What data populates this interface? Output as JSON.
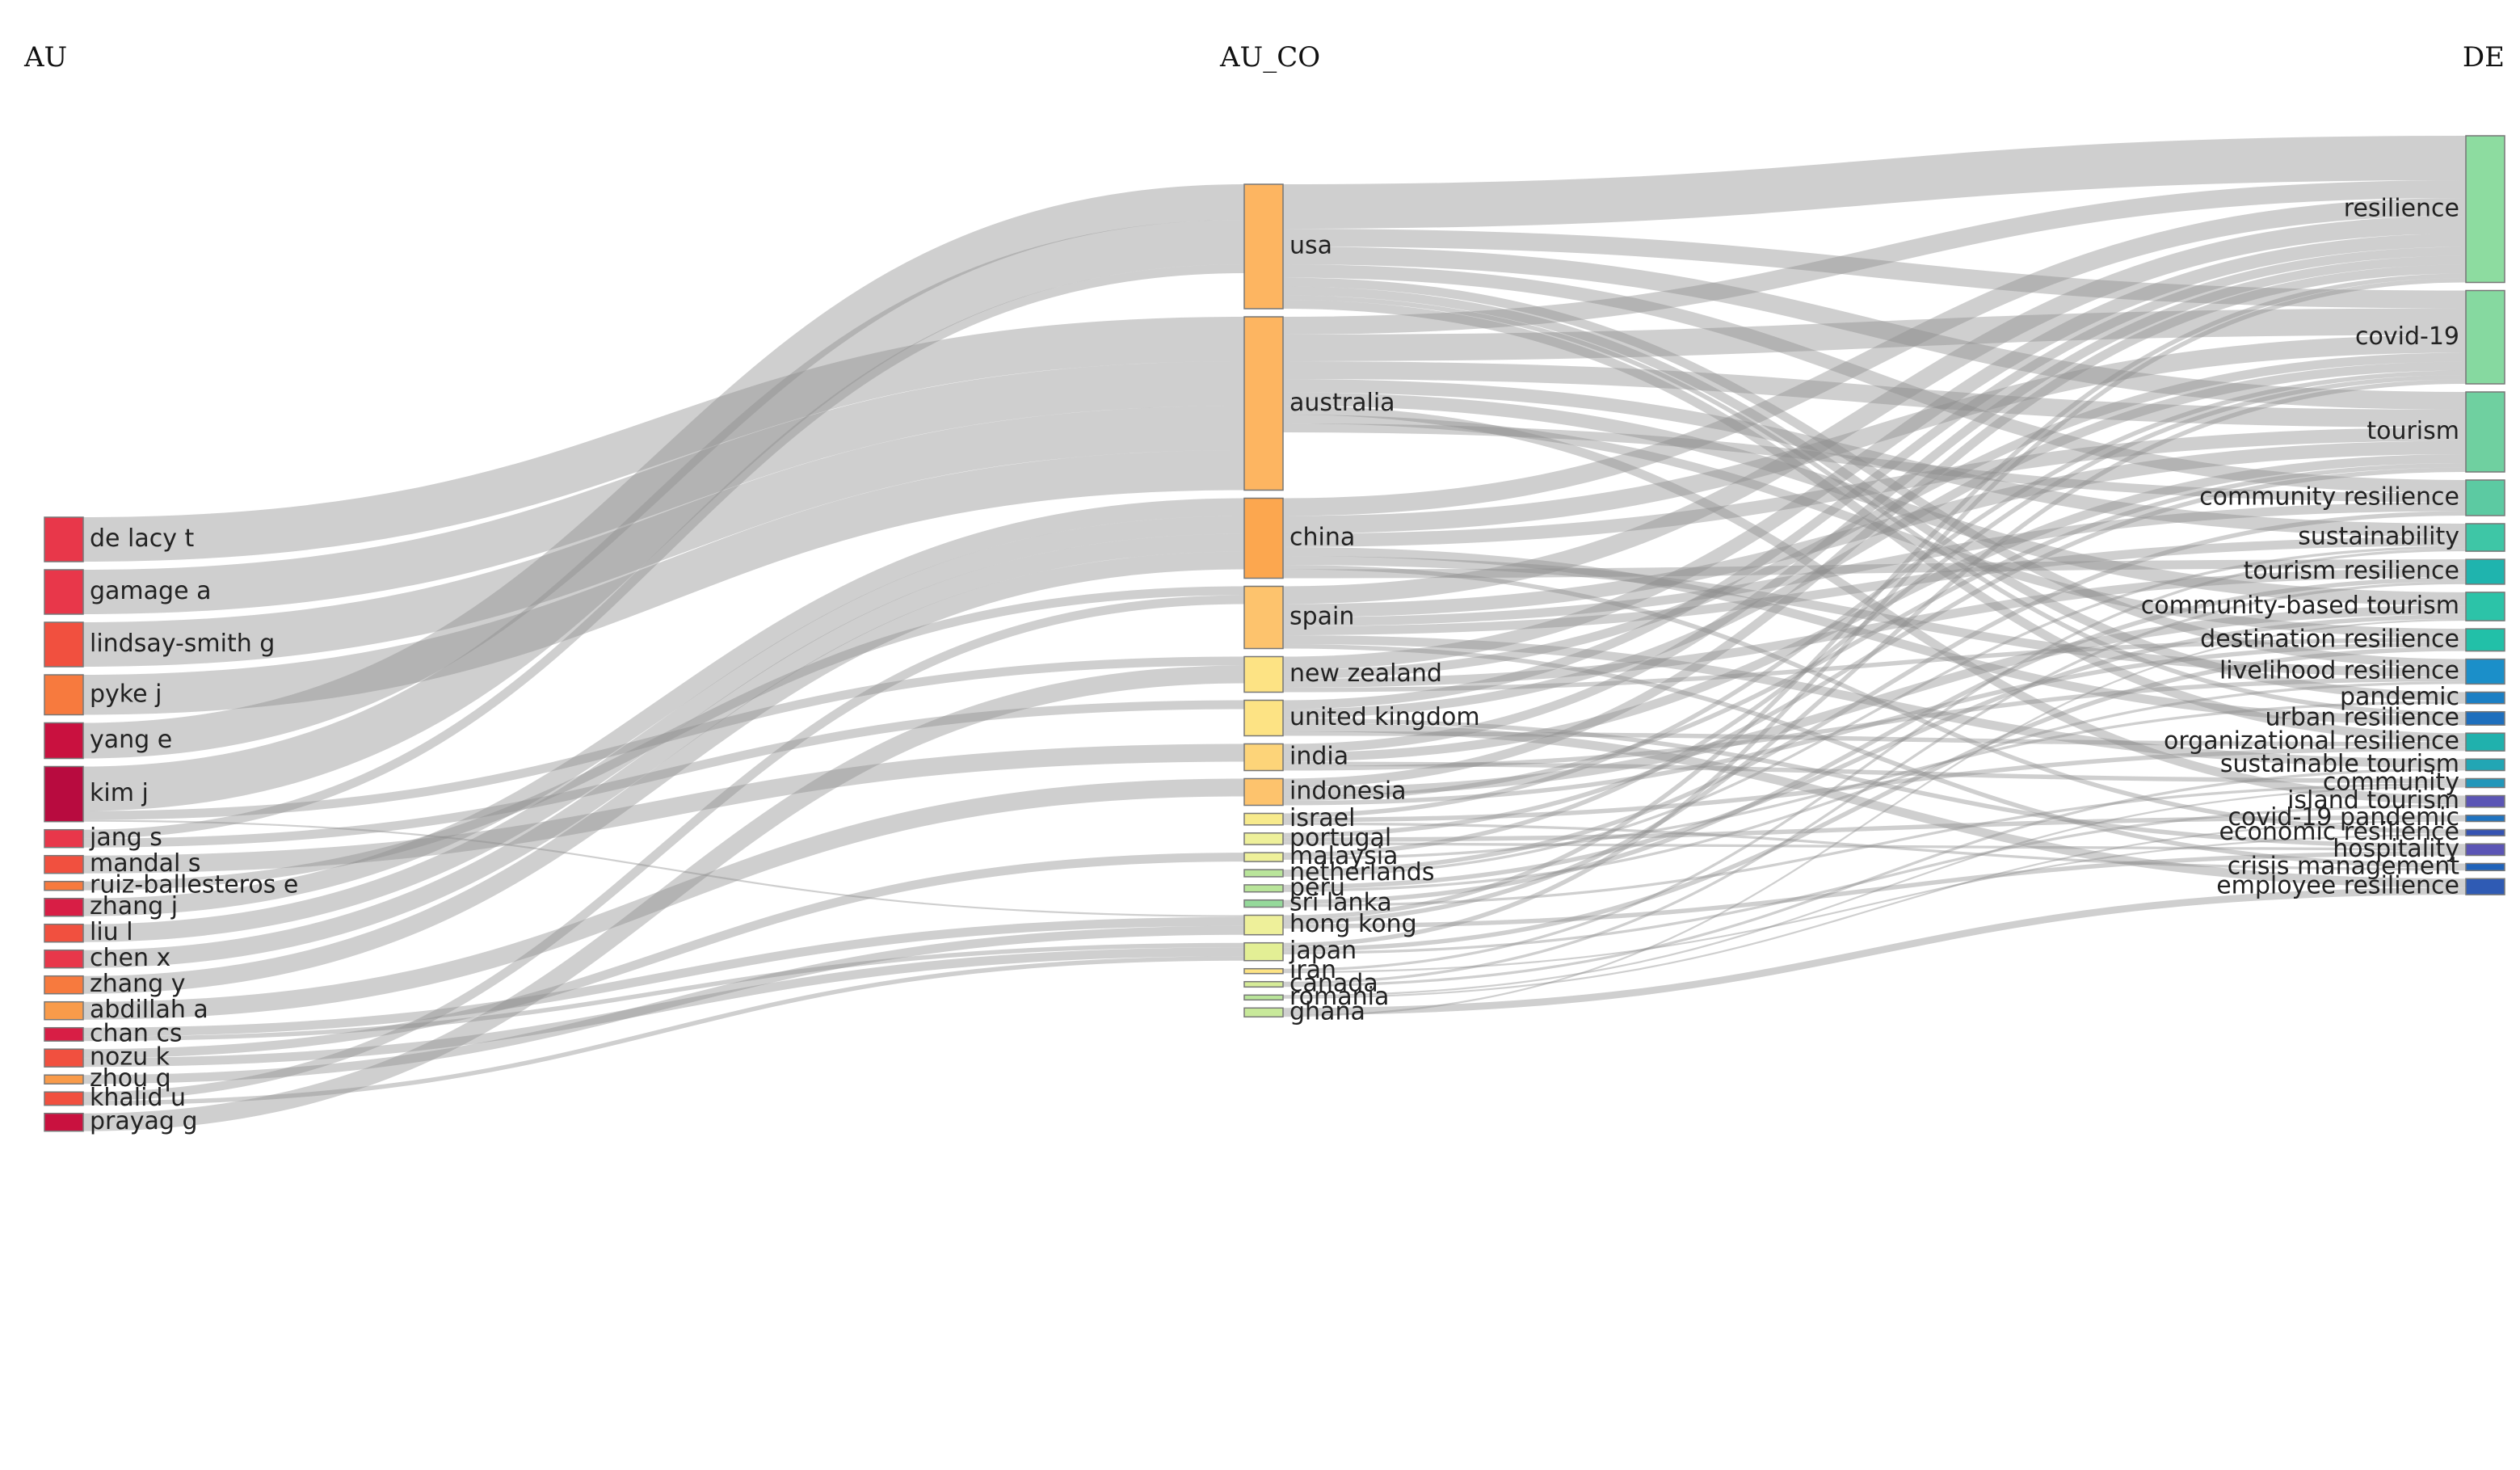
{
  "headers": {
    "left": "AU",
    "middle": "AU_CO",
    "right": "DE"
  },
  "colors": {
    "link": "#8c8c8c",
    "background": "#ffffff"
  },
  "nodes": {
    "au": [
      {
        "id": "a_delacy",
        "label": "de lacy t",
        "color": "#e8374a"
      },
      {
        "id": "a_gamage",
        "label": "gamage a",
        "color": "#e8374a"
      },
      {
        "id": "a_lindsay",
        "label": "lindsay-smith g",
        "color": "#f1503f"
      },
      {
        "id": "a_pyke",
        "label": "pyke j",
        "color": "#f77a3e"
      },
      {
        "id": "a_yang",
        "label": "yang e",
        "color": "#c9113f"
      },
      {
        "id": "a_kim",
        "label": "kim j",
        "color": "#b80b3f"
      },
      {
        "id": "a_jang",
        "label": "jang s",
        "color": "#e8374a"
      },
      {
        "id": "a_mandal",
        "label": "mandal s",
        "color": "#f1503f"
      },
      {
        "id": "a_ruiz",
        "label": "ruiz-ballesteros e",
        "color": "#f77a3e"
      },
      {
        "id": "a_zhangj",
        "label": "zhang j",
        "color": "#d81e45"
      },
      {
        "id": "a_liu",
        "label": "liu l",
        "color": "#f1503f"
      },
      {
        "id": "a_chenx",
        "label": "chen x",
        "color": "#e8374a"
      },
      {
        "id": "a_zhangy",
        "label": "zhang y",
        "color": "#f77a3e"
      },
      {
        "id": "a_abdillah",
        "label": "abdillah a",
        "color": "#f99b4a"
      },
      {
        "id": "a_chancs",
        "label": "chan cs",
        "color": "#d81e45"
      },
      {
        "id": "a_nozu",
        "label": "nozu k",
        "color": "#f1503f"
      },
      {
        "id": "a_zhouq",
        "label": "zhou q",
        "color": "#f99b4a"
      },
      {
        "id": "a_khalid",
        "label": "khalid u",
        "color": "#f1503f"
      },
      {
        "id": "a_prayag",
        "label": "prayag g",
        "color": "#c9113f"
      }
    ],
    "co": [
      {
        "id": "c_usa",
        "label": "usa",
        "color": "#fdb561"
      },
      {
        "id": "c_aus",
        "label": "australia",
        "color": "#fdb561"
      },
      {
        "id": "c_china",
        "label": "china",
        "color": "#fca74f"
      },
      {
        "id": "c_spain",
        "label": "spain",
        "color": "#fdc36d"
      },
      {
        "id": "c_nz",
        "label": "new zealand",
        "color": "#fde384"
      },
      {
        "id": "c_uk",
        "label": "united kingdom",
        "color": "#fde384"
      },
      {
        "id": "c_india",
        "label": "india",
        "color": "#fdd479"
      },
      {
        "id": "c_indonesia",
        "label": "indonesia",
        "color": "#fdc36d"
      },
      {
        "id": "c_israel",
        "label": "israel",
        "color": "#f7ea8c"
      },
      {
        "id": "c_portugal",
        "label": "portugal",
        "color": "#eef09a"
      },
      {
        "id": "c_malaysia",
        "label": "malaysia",
        "color": "#eef09a"
      },
      {
        "id": "c_neth",
        "label": "netherlands",
        "color": "#b9e59a"
      },
      {
        "id": "c_peru",
        "label": "peru",
        "color": "#b9e59a"
      },
      {
        "id": "c_srilanka",
        "label": "sri lanka",
        "color": "#95d99a"
      },
      {
        "id": "c_hk",
        "label": "hong kong",
        "color": "#eef09a"
      },
      {
        "id": "c_japan",
        "label": "japan",
        "color": "#e3ef95"
      },
      {
        "id": "c_iran",
        "label": "iran",
        "color": "#fde384"
      },
      {
        "id": "c_canada",
        "label": "canada",
        "color": "#d6ec98"
      },
      {
        "id": "c_romania",
        "label": "romania",
        "color": "#b9e59a"
      },
      {
        "id": "c_ghana",
        "label": "ghana",
        "color": "#c8e99a"
      }
    ],
    "de": [
      {
        "id": "d_resilience",
        "label": "resilience",
        "color": "#8ddca0"
      },
      {
        "id": "d_covid",
        "label": "covid-19",
        "color": "#86d9a0"
      },
      {
        "id": "d_tourism",
        "label": "tourism",
        "color": "#6fd0a0"
      },
      {
        "id": "d_commres",
        "label": "community resilience",
        "color": "#5ccaa2"
      },
      {
        "id": "d_sust",
        "label": "sustainability",
        "color": "#3ec6a6"
      },
      {
        "id": "d_tourres",
        "label": "tourism resilience",
        "color": "#1fb4ae"
      },
      {
        "id": "d_cbt",
        "label": "community-based tourism",
        "color": "#2cc3a8"
      },
      {
        "id": "d_destres",
        "label": "destination resilience",
        "color": "#22c0a8"
      },
      {
        "id": "d_livelihood",
        "label": "livelihood resilience",
        "color": "#1b8fc9"
      },
      {
        "id": "d_pandemic",
        "label": "pandemic",
        "color": "#1b7fc4"
      },
      {
        "id": "d_urban",
        "label": "urban resilience",
        "color": "#1e6fbd"
      },
      {
        "id": "d_orgres",
        "label": "organizational resilience",
        "color": "#20b1ad"
      },
      {
        "id": "d_susttour",
        "label": "sustainable tourism",
        "color": "#22a6b4"
      },
      {
        "id": "d_community",
        "label": "community",
        "color": "#2297ba"
      },
      {
        "id": "d_island",
        "label": "island tourism",
        "color": "#5b55b5"
      },
      {
        "id": "d_covidpan",
        "label": "covid-19 pandemic",
        "color": "#1f73c0"
      },
      {
        "id": "d_econres",
        "label": "economic resilience",
        "color": "#3553b2"
      },
      {
        "id": "d_hosp",
        "label": "hospitality",
        "color": "#5b55b5"
      },
      {
        "id": "d_crisis",
        "label": "crisis management",
        "color": "#2063ba"
      },
      {
        "id": "d_employee",
        "label": "employee resilience",
        "color": "#2f5bb4"
      }
    ]
  },
  "links_au_co": [
    [
      "a_delacy",
      "c_aus",
      5
    ],
    [
      "a_gamage",
      "c_aus",
      5
    ],
    [
      "a_lindsay",
      "c_aus",
      5
    ],
    [
      "a_pyke",
      "c_aus",
      4.5
    ],
    [
      "a_yang",
      "c_usa",
      4
    ],
    [
      "a_kim",
      "c_usa",
      5
    ],
    [
      "a_kim",
      "c_nz",
      1
    ],
    [
      "a_kim",
      "c_hk",
      0.2
    ],
    [
      "a_jang",
      "c_usa",
      1
    ],
    [
      "a_jang",
      "c_uk",
      1
    ],
    [
      "a_mandal",
      "c_india",
      2
    ],
    [
      "a_ruiz",
      "c_spain",
      1
    ],
    [
      "a_zhangj",
      "c_china",
      2
    ],
    [
      "a_liu",
      "c_china",
      2
    ],
    [
      "a_chenx",
      "c_china",
      2
    ],
    [
      "a_zhangy",
      "c_china",
      2
    ],
    [
      "a_abdillah",
      "c_indonesia",
      2
    ],
    [
      "a_chancs",
      "c_hk",
      1
    ],
    [
      "a_chancs",
      "c_japan",
      0.5
    ],
    [
      "a_nozu",
      "c_malaysia",
      1
    ],
    [
      "a_nozu",
      "c_japan",
      1
    ],
    [
      "a_zhouq",
      "c_hk",
      1
    ],
    [
      "a_khalid",
      "c_spain",
      1
    ],
    [
      "a_khalid",
      "c_japan",
      0.5
    ],
    [
      "a_prayag",
      "c_nz",
      2
    ]
  ],
  "links_co_de": [
    [
      "c_usa",
      "d_resilience",
      5
    ],
    [
      "c_usa",
      "d_covid",
      2
    ],
    [
      "c_usa",
      "d_tourism",
      2
    ],
    [
      "c_usa",
      "d_commres",
      1.5
    ],
    [
      "c_usa",
      "d_livelihood",
      1
    ],
    [
      "c_usa",
      "d_pandemic",
      1
    ],
    [
      "c_usa",
      "d_urban",
      0.5
    ],
    [
      "c_usa",
      "d_orgres",
      1
    ],
    [
      "c_aus",
      "d_resilience",
      2
    ],
    [
      "c_aus",
      "d_covid",
      3
    ],
    [
      "c_aus",
      "d_tourism",
      2
    ],
    [
      "c_aus",
      "d_sust",
      1.5
    ],
    [
      "c_aus",
      "d_cbt",
      1.5
    ],
    [
      "c_aus",
      "d_island",
      1
    ],
    [
      "c_aus",
      "d_destres",
      1
    ],
    [
      "c_aus",
      "d_commres",
      1
    ],
    [
      "c_china",
      "d_resilience",
      2
    ],
    [
      "c_china",
      "d_covid",
      2
    ],
    [
      "c_china",
      "d_tourism",
      1.5
    ],
    [
      "c_china",
      "d_urban",
      1
    ],
    [
      "c_china",
      "d_livelihood",
      1
    ],
    [
      "c_china",
      "d_econres",
      0.5
    ],
    [
      "c_china",
      "d_tourres",
      1
    ],
    [
      "c_spain",
      "d_resilience",
      2
    ],
    [
      "c_spain",
      "d_tourism",
      1.5
    ],
    [
      "c_spain",
      "d_commres",
      1
    ],
    [
      "c_spain",
      "d_sust",
      1
    ],
    [
      "c_spain",
      "d_susttour",
      1
    ],
    [
      "c_spain",
      "d_crisis",
      0.5
    ],
    [
      "c_nz",
      "d_resilience",
      1.5
    ],
    [
      "c_nz",
      "d_covid",
      1
    ],
    [
      "c_nz",
      "d_tourres",
      1
    ],
    [
      "c_nz",
      "d_destres",
      0.5
    ],
    [
      "c_uk",
      "d_resilience",
      1
    ],
    [
      "c_uk",
      "d_covid",
      1
    ],
    [
      "c_uk",
      "d_hosp",
      0.5
    ],
    [
      "c_uk",
      "d_employee",
      1
    ],
    [
      "c_uk",
      "d_orgres",
      0.5
    ],
    [
      "c_india",
      "d_resilience",
      1
    ],
    [
      "c_india",
      "d_tourism",
      1
    ],
    [
      "c_india",
      "d_community",
      0.5
    ],
    [
      "c_india",
      "d_livelihood",
      0.5
    ],
    [
      "c_indonesia",
      "d_resilience",
      1
    ],
    [
      "c_indonesia",
      "d_cbt",
      1
    ],
    [
      "c_indonesia",
      "d_tourism",
      0.5
    ],
    [
      "c_indonesia",
      "d_destres",
      0.5
    ],
    [
      "c_israel",
      "d_covid",
      0.5
    ],
    [
      "c_israel",
      "d_orgres",
      0.5
    ],
    [
      "c_israel",
      "d_crisis",
      0.3
    ],
    [
      "c_portugal",
      "d_tourism",
      0.5
    ],
    [
      "c_portugal",
      "d_covidpan",
      0.5
    ],
    [
      "c_portugal",
      "d_hosp",
      0.3
    ],
    [
      "c_malaysia",
      "d_covid",
      0.5
    ],
    [
      "c_malaysia",
      "d_pandemic",
      0.3
    ],
    [
      "c_neth",
      "d_commres",
      0.5
    ],
    [
      "c_neth",
      "d_sust",
      0.3
    ],
    [
      "c_peru",
      "d_cbt",
      0.5
    ],
    [
      "c_peru",
      "d_livelihood",
      0.3
    ],
    [
      "c_srilanka",
      "d_tourres",
      0.5
    ],
    [
      "c_srilanka",
      "d_community",
      0.3
    ],
    [
      "c_hk",
      "d_resilience",
      0.5
    ],
    [
      "c_hk",
      "d_covid",
      0.5
    ],
    [
      "c_hk",
      "d_hosp",
      0.5
    ],
    [
      "c_japan",
      "d_resilience",
      0.5
    ],
    [
      "c_japan",
      "d_destres",
      0.5
    ],
    [
      "c_japan",
      "d_island",
      0.3
    ],
    [
      "c_iran",
      "d_sust",
      0.3
    ],
    [
      "c_iran",
      "d_econres",
      0.2
    ],
    [
      "c_canada",
      "d_tourres",
      0.3
    ],
    [
      "c_canada",
      "d_susttour",
      0.3
    ],
    [
      "c_romania",
      "d_community",
      0.2
    ],
    [
      "c_romania",
      "d_covidpan",
      0.2
    ],
    [
      "c_ghana",
      "d_employee",
      0.8
    ],
    [
      "c_ghana",
      "d_cbt",
      0.2
    ]
  ]
}
